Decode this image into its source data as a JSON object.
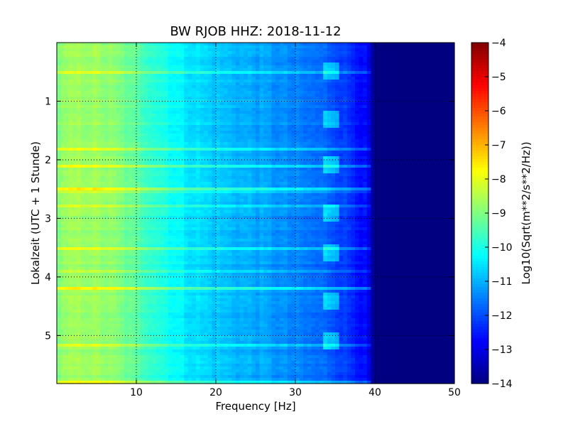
{
  "chart_data": {
    "type": "heatmap",
    "title": "BW RJOB HHZ: 2018-11-12",
    "xlabel": "Frequency [Hz]",
    "ylabel": "Lokalzeit (UTC + 1 Stunde)",
    "xlim": [
      0,
      50
    ],
    "ylim": [
      0,
      5.82
    ],
    "y_inverted": true,
    "x_ticks": [
      10,
      20,
      30,
      40,
      50
    ],
    "x_tick_labels": [
      "10",
      "20",
      "30",
      "40",
      "50"
    ],
    "y_ticks": [
      1,
      2,
      3,
      4,
      5
    ],
    "y_tick_labels": [
      "1",
      "2",
      "3",
      "4",
      "5"
    ],
    "grid": true,
    "colormap": "jet",
    "colorbar": {
      "label": "Log10(Sqrt(m**2/s**2/Hz))",
      "range": [
        -14,
        -4
      ],
      "ticks": [
        -4,
        -5,
        -6,
        -7,
        -8,
        -9,
        -10,
        -11,
        -12,
        -13,
        -14
      ],
      "tick_labels": [
        "−4",
        "−5",
        "−6",
        "−7",
        "−8",
        "−9",
        "−10",
        "−11",
        "−12",
        "−13",
        "−14"
      ]
    },
    "spectral_profile": {
      "frequency_hz": [
        0,
        2,
        4,
        7,
        10,
        13,
        16,
        20,
        25,
        30,
        34,
        37,
        39,
        40,
        42,
        50
      ],
      "log10_psd": [
        -9.0,
        -8.7,
        -8.7,
        -8.9,
        -9.4,
        -9.9,
        -10.4,
        -10.8,
        -11.1,
        -11.5,
        -11.8,
        -12.3,
        -12.8,
        -14.0,
        -14.0,
        -14.0
      ]
    },
    "features": [
      {
        "label": "spectral line",
        "frequency_hz": 34.5,
        "times_h": [
          0.5,
          1.3,
          2.1,
          2.9,
          3.6,
          4.4,
          5.1
        ]
      }
    ]
  }
}
